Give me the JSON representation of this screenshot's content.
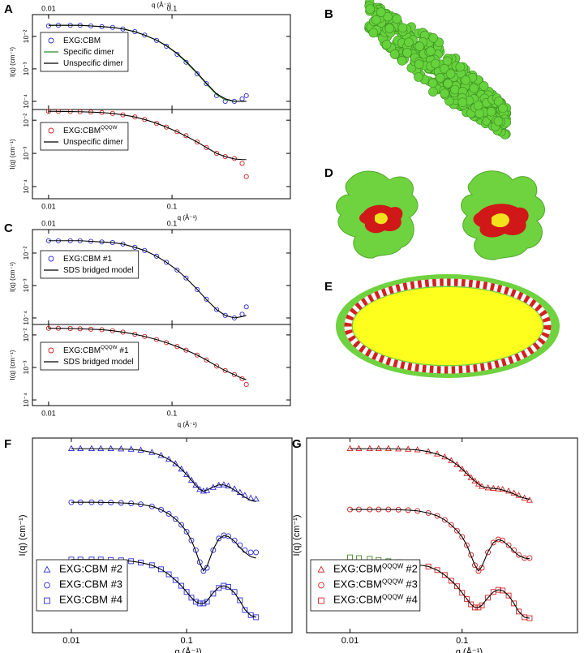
{
  "chart_data": [
    {
      "type": "scatter",
      "panel": "A",
      "log_x": true,
      "log_y": true,
      "xaxis": "top",
      "xlabel": "q (Å⁻¹)",
      "ylabel": "I(q) (cm⁻¹)",
      "xlim": [
        0.0074,
        0.91
      ],
      "ylim": [
        5.6e-05,
        0.047
      ],
      "xticks": [
        0.01,
        0.1
      ],
      "yticks": [
        {
          "value": 0.0001,
          "label": "10⁻⁴"
        },
        {
          "value": 0.001,
          "label": "10⁻³"
        },
        {
          "value": 0.01,
          "label": "10⁻²"
        }
      ],
      "legend": "upper left",
      "x": [
        0.01,
        0.012,
        0.015,
        0.018,
        0.022,
        0.027,
        0.033,
        0.04,
        0.05,
        0.06,
        0.075,
        0.09,
        0.11,
        0.13,
        0.16,
        0.19,
        0.23,
        0.27,
        0.32,
        0.37,
        0.4
      ],
      "series": [
        {
          "name": "EXG:CBM",
          "style": "markers",
          "marker": "circle",
          "color": "#2b2bd6",
          "values": [
            0.021,
            0.022,
            0.022,
            0.022,
            0.021,
            0.02,
            0.019,
            0.017,
            0.014,
            0.011,
            0.0075,
            0.005,
            0.0028,
            0.0016,
            0.0007,
            0.00035,
            0.00015,
            0.0001,
            0.0001,
            0.00012,
            0.00015
          ]
        },
        {
          "name": "Specific dimer",
          "style": "line",
          "color": "#2a8a2a",
          "values": [
            0.022,
            0.022,
            0.022,
            0.022,
            0.021,
            0.02,
            0.019,
            0.017,
            0.014,
            0.011,
            0.0076,
            0.0051,
            0.0029,
            0.0016,
            0.00072,
            0.00034,
            0.00016,
            0.00011,
            0.0001,
            0.0001,
            0.0001
          ]
        },
        {
          "name": "Unspecific dimer",
          "style": "line",
          "color": "#000000",
          "values": [
            0.022,
            0.022,
            0.022,
            0.022,
            0.021,
            0.02,
            0.019,
            0.017,
            0.014,
            0.011,
            0.0077,
            0.0052,
            0.003,
            0.0017,
            0.00075,
            0.00036,
            0.00017,
            0.00012,
            0.0001,
            0.0001,
            0.0001
          ]
        }
      ]
    },
    {
      "type": "scatter",
      "log_x": true,
      "log_y": true,
      "xaxis": "bottom",
      "xlabel": "q (Å⁻¹)",
      "ylabel": "I(q) (cm⁻¹)",
      "xlim": [
        0.0074,
        0.91
      ],
      "ylim": [
        4.3e-05,
        0.021
      ],
      "xticks": [
        0.01,
        0.1
      ],
      "yticks": [
        {
          "value": 0.0001,
          "label": "10⁻⁴"
        },
        {
          "value": 0.001,
          "label": "10⁻³"
        },
        {
          "value": 0.01,
          "label": "10⁻²"
        }
      ],
      "legend": "upper left",
      "x": [
        0.01,
        0.012,
        0.015,
        0.018,
        0.022,
        0.027,
        0.033,
        0.04,
        0.05,
        0.06,
        0.075,
        0.09,
        0.11,
        0.13,
        0.16,
        0.19,
        0.23,
        0.27,
        0.32,
        0.37,
        0.4
      ],
      "series": [
        {
          "name": "EXG:CBM",
          "name_sup": "QQQW",
          "style": "markers",
          "marker": "circle",
          "color": "#d42020",
          "values": [
            0.0185,
            0.0185,
            0.0183,
            0.018,
            0.0176,
            0.017,
            0.016,
            0.0145,
            0.0125,
            0.0105,
            0.008,
            0.0062,
            0.0045,
            0.0034,
            0.0022,
            0.0015,
            0.001,
            0.0008,
            0.0007,
            0.0005,
            0.0002
          ]
        },
        {
          "name": "Unspecific dimer",
          "style": "line",
          "color": "#000000",
          "values": [
            0.0185,
            0.0184,
            0.0182,
            0.018,
            0.0176,
            0.017,
            0.016,
            0.0145,
            0.0125,
            0.0105,
            0.0081,
            0.0062,
            0.0045,
            0.0033,
            0.0022,
            0.0015,
            0.001,
            0.0008,
            0.00068,
            0.00065,
            0.00065
          ]
        }
      ]
    },
    {
      "type": "scatter",
      "panel": "C",
      "log_x": true,
      "log_y": true,
      "xaxis": "top",
      "ylabel": "I(q) (cm⁻¹)",
      "xlim": [
        0.0074,
        0.91
      ],
      "ylim": [
        6.3e-05,
        0.053
      ],
      "xticks": [
        0.01,
        0.1
      ],
      "yticks": [
        {
          "value": 0.0001,
          "label": "10⁻⁴"
        },
        {
          "value": 0.001,
          "label": "10⁻³"
        },
        {
          "value": 0.01,
          "label": "10⁻²"
        }
      ],
      "legend": "upper left",
      "x": [
        0.01,
        0.012,
        0.015,
        0.018,
        0.022,
        0.027,
        0.033,
        0.04,
        0.05,
        0.06,
        0.075,
        0.09,
        0.11,
        0.13,
        0.16,
        0.19,
        0.23,
        0.27,
        0.32,
        0.37,
        0.4
      ],
      "series": [
        {
          "name": "EXG:CBM #1",
          "style": "markers",
          "marker": "circle",
          "color": "#2b2bd6",
          "values": [
            0.024,
            0.024,
            0.024,
            0.024,
            0.023,
            0.022,
            0.021,
            0.019,
            0.015,
            0.012,
            0.008,
            0.0052,
            0.003,
            0.0017,
            0.00075,
            0.00038,
            0.00018,
            0.00012,
            0.0001,
            0.00013,
            0.00022
          ]
        },
        {
          "name": "SDS bridged model",
          "style": "line",
          "color": "#000000",
          "values": [
            0.024,
            0.024,
            0.024,
            0.024,
            0.023,
            0.022,
            0.021,
            0.019,
            0.015,
            0.012,
            0.008,
            0.0052,
            0.003,
            0.0017,
            0.00076,
            0.00037,
            0.00018,
            0.00012,
            0.0001,
            0.00011,
            0.00012
          ]
        }
      ]
    },
    {
      "type": "scatter",
      "log_x": true,
      "log_y": true,
      "xaxis": "bottom",
      "xlabel": "q (Å⁻¹)",
      "ylabel": "I(q) (cm⁻¹)",
      "xlim": [
        0.0074,
        0.91
      ],
      "ylim": [
        6.7e-05,
        0.021
      ],
      "xticks": [
        0.01,
        0.1
      ],
      "yticks": [
        {
          "value": 0.0001,
          "label": "10⁻⁴"
        },
        {
          "value": 0.001,
          "label": "10⁻³"
        },
        {
          "value": 0.01,
          "label": "10⁻²"
        }
      ],
      "legend": "upper left",
      "x": [
        0.01,
        0.012,
        0.015,
        0.018,
        0.022,
        0.027,
        0.033,
        0.04,
        0.05,
        0.06,
        0.075,
        0.09,
        0.11,
        0.13,
        0.16,
        0.19,
        0.23,
        0.27,
        0.32,
        0.37,
        0.4
      ],
      "series": [
        {
          "name": "EXG:CBM",
          "name_sup": "QQQW",
          "name_tail": "#1",
          "style": "markers",
          "marker": "circle",
          "color": "#d42020",
          "values": [
            0.016,
            0.016,
            0.0158,
            0.0155,
            0.015,
            0.0145,
            0.0135,
            0.0122,
            0.0105,
            0.009,
            0.0072,
            0.0058,
            0.0044,
            0.0034,
            0.0024,
            0.0017,
            0.0011,
            0.0008,
            0.0006,
            0.00045,
            0.0003
          ]
        },
        {
          "name": "SDS bridged model",
          "style": "line",
          "color": "#000000",
          "values": [
            0.016,
            0.016,
            0.0158,
            0.0155,
            0.015,
            0.0145,
            0.0135,
            0.0122,
            0.0105,
            0.009,
            0.0072,
            0.0058,
            0.0044,
            0.0034,
            0.0024,
            0.0017,
            0.0011,
            0.0008,
            0.0006,
            0.00046,
            0.00042
          ]
        }
      ]
    },
    {
      "type": "scatter",
      "panel": "F",
      "log_x": true,
      "log_y": true,
      "xaxis": "bottom",
      "xlabel": "q (Å⁻¹)",
      "ylabel": "I(q) (cm⁻¹)",
      "xlim": [
        0.0046,
        0.82
      ],
      "ylim": [
        1e-06,
        1
      ],
      "xticks": [
        0.01,
        0.1
      ],
      "legend": "lower left",
      "x": [
        0.01,
        0.012,
        0.015,
        0.018,
        0.022,
        0.027,
        0.033,
        0.04,
        0.05,
        0.06,
        0.07,
        0.08,
        0.09,
        0.1,
        0.11,
        0.12,
        0.13,
        0.14,
        0.15,
        0.17,
        0.19,
        0.21,
        0.23,
        0.26,
        0.29,
        0.32,
        0.36,
        0.4
      ],
      "series": [
        {
          "name": "EXG:CBM #2",
          "style": "markers",
          "marker": "triangle",
          "color": "#2b2bd6",
          "values": [
            0.47,
            0.47,
            0.47,
            0.47,
            0.47,
            0.46,
            0.45,
            0.42,
            0.36,
            0.29,
            0.22,
            0.16,
            0.11,
            0.075,
            0.05,
            0.035,
            0.026,
            0.023,
            0.024,
            0.03,
            0.035,
            0.036,
            0.033,
            0.027,
            0.021,
            0.017,
            0.014,
            0.013
          ]
        },
        {
          "name": "EXG:CBM #3",
          "style": "markers",
          "marker": "circle",
          "color": "#2b2bd6",
          "values": [
            0.0105,
            0.0105,
            0.0105,
            0.0104,
            0.0103,
            0.01,
            0.0097,
            0.0091,
            0.0078,
            0.0062,
            0.0046,
            0.0032,
            0.0021,
            0.0013,
            0.0007,
            0.00035,
            0.00015,
            8e-05,
            0.0001,
            0.00035,
            0.0008,
            0.001,
            0.00095,
            0.0007,
            0.0005,
            0.00035,
            0.0003,
            0.0003
          ]
        },
        {
          "name": "EXG:CBM #4",
          "style": "markers",
          "marker": "square",
          "color": "#2b2bd6",
          "values": [
            0.00018,
            0.00018,
            0.00018,
            0.00018,
            0.000175,
            0.00017,
            0.00016,
            0.000145,
            0.00012,
            9e-05,
            6.3e-05,
            4.2e-05,
            2.8e-05,
            1.8e-05,
            1.2e-05,
            9e-06,
            8e-06,
            8e-06,
            9e-06,
            1.6e-05,
            2.4e-05,
            2.8e-05,
            2.6e-05,
            1.8e-05,
            1e-05,
            5e-06,
            3.5e-06,
            3e-06
          ]
        },
        {
          "style": "line",
          "color": "#000000",
          "values": [
            0.47,
            0.47,
            0.47,
            0.47,
            0.47,
            0.46,
            0.45,
            0.42,
            0.36,
            0.29,
            0.22,
            0.16,
            0.11,
            0.075,
            0.05,
            0.035,
            0.026,
            0.023,
            0.025,
            0.031,
            0.036,
            0.036,
            0.032,
            0.025,
            0.019,
            0.015,
            0.012,
            0.011
          ]
        },
        {
          "style": "line",
          "color": "#000000",
          "values": [
            0.0105,
            0.0105,
            0.0105,
            0.0104,
            0.0103,
            0.01,
            0.0097,
            0.0091,
            0.0078,
            0.0062,
            0.0046,
            0.0032,
            0.0021,
            0.0013,
            0.0007,
            0.00033,
            0.00014,
            8e-05,
            0.00011,
            0.00037,
            0.00078,
            0.00098,
            0.00092,
            0.00066,
            0.00042,
            0.0003,
            0.00022,
            0.0002
          ]
        },
        {
          "style": "line",
          "color": "#000000",
          "values": [
            0.00018,
            0.00018,
            0.00018,
            0.00018,
            0.000175,
            0.00017,
            0.00016,
            0.000145,
            0.00012,
            9e-05,
            6.3e-05,
            4.2e-05,
            2.8e-05,
            1.8e-05,
            1.2e-05,
            9e-06,
            8e-06,
            8e-06,
            9.5e-06,
            1.7e-05,
            2.5e-05,
            2.8e-05,
            2.5e-05,
            1.7e-05,
            9.5e-06,
            5.2e-06,
            3.4e-06,
            3e-06
          ]
        }
      ]
    },
    {
      "type": "scatter",
      "panel": "G",
      "log_x": true,
      "log_y": true,
      "xaxis": "bottom",
      "xlabel": "q (Å⁻¹)",
      "ylabel": "I(q) (cm⁻¹)",
      "xlim": [
        0.0041,
        1.07
      ],
      "ylim": [
        1e-06,
        1
      ],
      "xticks": [
        0.01,
        0.1
      ],
      "legend": "lower left",
      "x": [
        0.01,
        0.012,
        0.015,
        0.018,
        0.022,
        0.027,
        0.033,
        0.04,
        0.05,
        0.06,
        0.07,
        0.08,
        0.09,
        0.1,
        0.11,
        0.12,
        0.13,
        0.14,
        0.15,
        0.17,
        0.19,
        0.21,
        0.23,
        0.26,
        0.29,
        0.32,
        0.36,
        0.4
      ],
      "series": [
        {
          "name": "EXG:CBM",
          "name_sup": "QQQW",
          "name_tail": "#2",
          "style": "markers",
          "marker": "triangle",
          "color": "#d42020",
          "values": [
            0.47,
            0.47,
            0.47,
            0.47,
            0.47,
            0.46,
            0.45,
            0.43,
            0.38,
            0.32,
            0.26,
            0.2,
            0.15,
            0.11,
            0.08,
            0.06,
            0.047,
            0.038,
            0.032,
            0.029,
            0.028,
            0.027,
            0.026,
            0.023,
            0.02,
            0.017,
            0.014,
            0.012
          ]
        },
        {
          "name": "EXG:CBM",
          "name_sup": "QQQW",
          "name_tail": "#3",
          "style": "markers",
          "marker": "circle",
          "color": "#d42020",
          "values": [
            0.0063,
            0.0063,
            0.0063,
            0.0063,
            0.0063,
            0.0062,
            0.006,
            0.0057,
            0.0049,
            0.004,
            0.003,
            0.0021,
            0.0014,
            0.0009,
            0.0005,
            0.00025,
            0.00012,
            8e-05,
            0.0001,
            0.0003,
            0.0006,
            0.00075,
            0.0007,
            0.0005,
            0.00035,
            0.00025,
            0.0002,
            0.0002
          ]
        },
        {
          "name": "EXG:CBM",
          "name_sup": "QQQW",
          "name_tail": "#4",
          "style": "markers",
          "marker": "square",
          "color": "#d42020",
          "values": [
            null,
            null,
            null,
            null,
            null,
            null,
            0.000135,
            0.000125,
            0.00011,
            8.5e-05,
            6e-05,
            4e-05,
            2.7e-05,
            1.7e-05,
            1.1e-05,
            7.5e-06,
            6e-06,
            6e-06,
            7e-06,
            1.2e-05,
            1.8e-05,
            2.1e-05,
            2e-05,
            1.4e-05,
            8e-06,
            4.5e-06,
            3e-06,
            2.8e-06
          ]
        },
        {
          "style": "markers",
          "marker": "square",
          "color": "#4a8a2a",
          "values": [
            0.00021,
            0.0002,
            0.00019,
            0.000175,
            0.00016,
            0.00015,
            null,
            null,
            null,
            null,
            null,
            null,
            null,
            null,
            null,
            null,
            null,
            null,
            null,
            null,
            null,
            null,
            null,
            null,
            null,
            null,
            null,
            null
          ]
        },
        {
          "style": "line",
          "color": "#000000",
          "values": [
            0.47,
            0.47,
            0.47,
            0.47,
            0.47,
            0.46,
            0.45,
            0.43,
            0.38,
            0.32,
            0.26,
            0.2,
            0.15,
            0.11,
            0.08,
            0.06,
            0.047,
            0.038,
            0.032,
            0.029,
            0.028,
            0.027,
            0.025,
            0.022,
            0.019,
            0.016,
            0.014,
            0.013
          ]
        },
        {
          "style": "line",
          "color": "#000000",
          "values": [
            0.0063,
            0.0063,
            0.0063,
            0.0063,
            0.0063,
            0.0062,
            0.006,
            0.0057,
            0.0049,
            0.004,
            0.003,
            0.0021,
            0.0014,
            0.0009,
            0.0005,
            0.00024,
            0.00012,
            8e-05,
            0.00011,
            0.00031,
            0.0006,
            0.00074,
            0.00068,
            0.00048,
            0.00032,
            0.00024,
            0.0002,
            0.00019
          ]
        },
        {
          "style": "line",
          "color": "#000000",
          "values": [
            0.000138,
            0.000138,
            0.000138,
            0.000137,
            0.000137,
            0.000136,
            0.000135,
            0.000125,
            0.00011,
            8.5e-05,
            6e-05,
            4e-05,
            2.7e-05,
            1.7e-05,
            1.1e-05,
            7.5e-06,
            6e-06,
            6e-06,
            7e-06,
            1.2e-05,
            1.8e-05,
            2.1e-05,
            2e-05,
            1.4e-05,
            8e-06,
            4.5e-06,
            3e-06,
            2.8e-06
          ]
        }
      ]
    }
  ],
  "illustrations": [
    {
      "panel": "B"
    },
    {
      "panel": "D"
    },
    {
      "panel": "E"
    }
  ]
}
